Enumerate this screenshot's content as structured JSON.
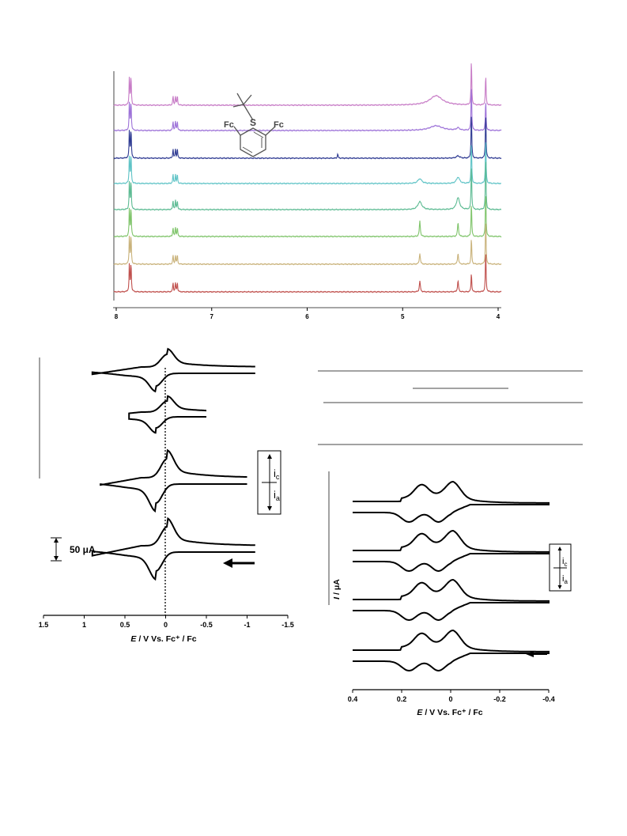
{
  "chart_data": [
    {
      "type": "line",
      "panel": "nmr-spectra",
      "x_ticks": [
        "8",
        "7",
        "6",
        "5",
        "4"
      ],
      "xlim": [
        8.0,
        4.0
      ],
      "x_reversed": true,
      "trace_count": 8,
      "trace_colors": [
        "#c77bc6",
        "#9d72d8",
        "#2e3a92",
        "#5ec3c6",
        "#5dbb93",
        "#7fc46a",
        "#c9b27a",
        "#c0504d"
      ],
      "peaks_ppm": [
        7.85,
        7.4,
        4.82,
        4.42,
        4.28,
        4.13
      ],
      "structure": {
        "top": "S",
        "left": "Fc",
        "right": "Fc"
      }
    },
    {
      "type": "line",
      "panel": "cyclic-voltammetry-1",
      "x_ticks": [
        "1.5",
        "1",
        "0.5",
        "0",
        "-0.5",
        "-1",
        "-1.5"
      ],
      "xlim": [
        1.5,
        -1.5
      ],
      "xlabel_var": "E",
      "xlabel_rest": " / V Vs. Fc⁺ / Fc",
      "scale_bar": "50 μA",
      "current_box": {
        "top": "i",
        "top_sub": "c",
        "bottom": "i",
        "bottom_sub": "a"
      },
      "arrow": "scan-direction"
    },
    {
      "type": "line",
      "panel": "cyclic-voltammetry-2",
      "x_ticks": [
        "0.4",
        "0.2",
        "0",
        "-0.2",
        "-0.4"
      ],
      "xlim": [
        0.4,
        -0.4
      ],
      "xlabel_var": "E",
      "xlabel_rest": " / V Vs. Fc⁺ / Fc",
      "ylabel_var": "I",
      "ylabel_rest": " / μA",
      "current_box": {
        "top": "i",
        "top_sub": "c",
        "bottom": "i",
        "bottom_sub": "a"
      },
      "arrow": "scan-direction"
    }
  ]
}
